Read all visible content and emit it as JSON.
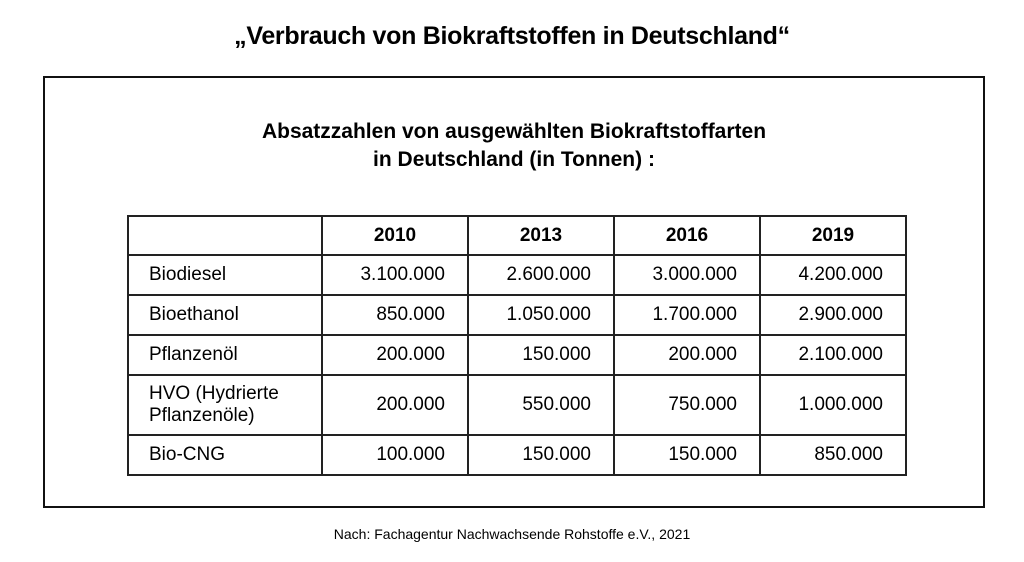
{
  "title": "„Verbrauch von Biokraftstoffen in Deutschland“",
  "subtitle": {
    "line1": "Absatzzahlen von ausgewählten Biokraftstoffarten",
    "line2": "in Deutschland (in Tonnen) :"
  },
  "table": {
    "headers": [
      "",
      "2010",
      "2013",
      "2016",
      "2019"
    ],
    "rows": [
      {
        "label": "Biodiesel",
        "values": [
          "3.100.000",
          "2.600.000",
          "3.000.000",
          "4.200.000"
        ]
      },
      {
        "label": "Bioethanol",
        "values": [
          "850.000",
          "1.050.000",
          "1.700.000",
          "2.900.000"
        ]
      },
      {
        "label": "Pflanzenöl",
        "values": [
          "200.000",
          "150.000",
          "200.000",
          "2.100.000"
        ]
      },
      {
        "label_line1": "HVO (Hydrierte",
        "label_line2": "Pflanzenöle)",
        "values": [
          "200.000",
          "550.000",
          "750.000",
          "1.000.000"
        ]
      },
      {
        "label": "Bio-CNG",
        "values": [
          "100.000",
          "150.000",
          "150.000",
          "850.000"
        ]
      }
    ]
  },
  "source": "Nach: Fachagentur Nachwachsende Rohstoffe e.V., 2021"
}
